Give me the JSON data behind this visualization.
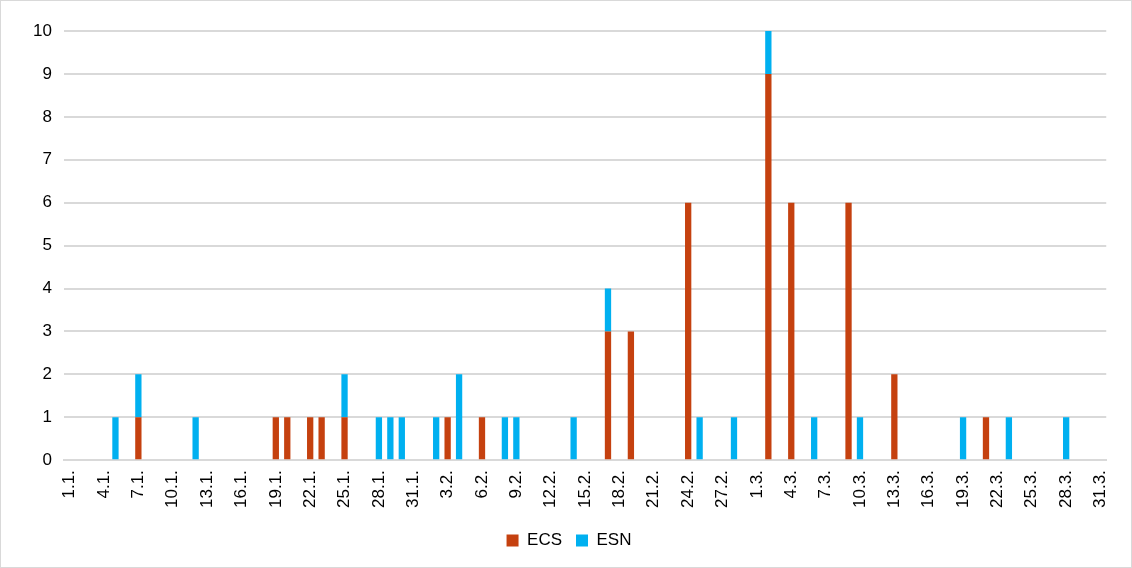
{
  "chart_data": {
    "type": "bar",
    "stacked": true,
    "grid": "y",
    "legend": "bottom",
    "categories": [
      "1.1.",
      null,
      null,
      "4.1.",
      null,
      null,
      "7.1.",
      null,
      null,
      "10.1.",
      null,
      null,
      "13.1.",
      null,
      null,
      "16.1.",
      null,
      null,
      "19.1.",
      null,
      null,
      "22.1.",
      null,
      null,
      "25.1.",
      null,
      null,
      "28.1.",
      null,
      null,
      "31.1.",
      null,
      null,
      "3.2.",
      null,
      null,
      "6.2.",
      null,
      null,
      "9.2.",
      null,
      null,
      "12.2.",
      null,
      null,
      "15.2.",
      null,
      null,
      "18.2.",
      null,
      null,
      "21.2.",
      null,
      null,
      "24.2.",
      null,
      null,
      "27.2.",
      null,
      null,
      "1.3.",
      null,
      null,
      "4.3.",
      null,
      null,
      "7.3.",
      null,
      null,
      "10.3.",
      null,
      null,
      "13.3.",
      null,
      null,
      "16.3.",
      null,
      null,
      "19.3.",
      null,
      null,
      "22.3.",
      null,
      null,
      "25.3.",
      null,
      null,
      "28.3.",
      null,
      null,
      "31.3."
    ],
    "series": [
      {
        "name": "ECS",
        "color": "#c5410f",
        "values": [
          0,
          0,
          0,
          0,
          0,
          0,
          1,
          0,
          0,
          0,
          0,
          0,
          0,
          0,
          0,
          0,
          0,
          0,
          1,
          1,
          0,
          1,
          1,
          0,
          1,
          0,
          0,
          0,
          0,
          0,
          0,
          0,
          0,
          1,
          0,
          0,
          1,
          0,
          0,
          0,
          0,
          0,
          0,
          0,
          0,
          0,
          0,
          3,
          0,
          3,
          0,
          0,
          0,
          0,
          6,
          0,
          0,
          0,
          0,
          0,
          0,
          9,
          0,
          6,
          0,
          0,
          0,
          0,
          6,
          0,
          0,
          0,
          2,
          0,
          0,
          0,
          0,
          0,
          0,
          0,
          1,
          0,
          0,
          0,
          0,
          0,
          0,
          0,
          0,
          0,
          0
        ]
      },
      {
        "name": "ESN",
        "color": "#00b0f0",
        "values": [
          0,
          0,
          0,
          0,
          1,
          0,
          1,
          0,
          0,
          0,
          0,
          1,
          0,
          0,
          0,
          0,
          0,
          0,
          0,
          0,
          0,
          0,
          0,
          0,
          1,
          0,
          0,
          1,
          1,
          1,
          0,
          0,
          1,
          0,
          2,
          0,
          0,
          0,
          1,
          1,
          0,
          0,
          0,
          0,
          1,
          0,
          0,
          1,
          0,
          0,
          0,
          0,
          0,
          0,
          0,
          1,
          0,
          0,
          1,
          0,
          0,
          1,
          0,
          0,
          0,
          1,
          0,
          0,
          0,
          1,
          0,
          0,
          0,
          0,
          0,
          0,
          0,
          0,
          1,
          0,
          0,
          0,
          1,
          0,
          0,
          0,
          0,
          1,
          0,
          0,
          0
        ]
      }
    ],
    "ylim": [
      0,
      10
    ],
    "yticks": [
      0,
      1,
      2,
      3,
      4,
      5,
      6,
      7,
      8,
      9,
      10
    ]
  }
}
